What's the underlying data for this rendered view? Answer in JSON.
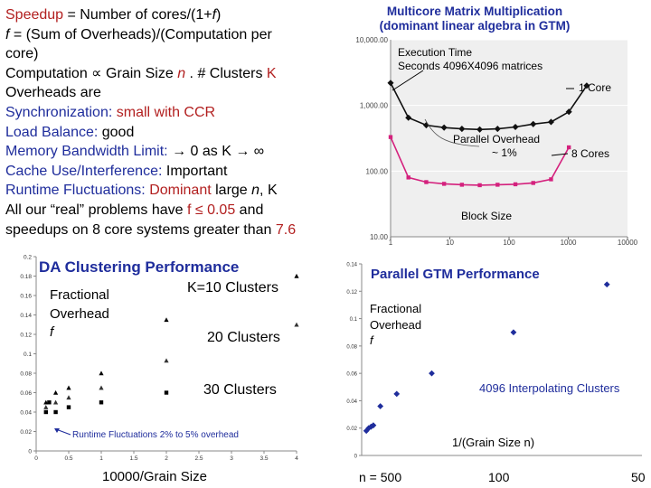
{
  "slide_text": {
    "line1": {
      "a": "Speedup",
      "b": " = Number of cores/(1+",
      "c": "f",
      "d": ")"
    },
    "line2": {
      "a": "f",
      "b": " = (Sum of Overheads)/(Computation per"
    },
    "line3": {
      "a": "core)"
    },
    "line4": {
      "a": "Computation ",
      "sym": "∝",
      "b": " Grain Size ",
      "n": "n",
      "c": " . # Clusters ",
      "k": "K"
    },
    "line5": {
      "a": "Overheads are"
    },
    "line6": {
      "a": "Synchronization: ",
      "b": "small with CCR"
    },
    "line7": {
      "a": "Load Balance: ",
      "b": "good"
    },
    "line8": {
      "a": "Memory Bandwidth Limit: ",
      "b": "→ 0 as K → ∞"
    },
    "line9": {
      "a": "Cache Use/Interference: ",
      "b": "Important"
    },
    "line10": {
      "a": "Runtime Fluctuations: ",
      "b": "Dominant",
      "c": " large ",
      "n": "n",
      "d": ", K"
    },
    "line11": {
      "a": "All our “real” problems have ",
      "b": "f ≤ 0.05",
      "c": " and"
    },
    "line12": {
      "a": "speedups on 8 core systems greater than ",
      "b": "7.6"
    }
  },
  "chart_data": [
    {
      "type": "line",
      "title": "Multicore Matrix Multiplication",
      "subtitle": "(dominant linear algebra in GTM)",
      "annotation_ylabel": [
        "Execution Time",
        "Seconds 4096X4096 matrices"
      ],
      "xlabel": "Block Size",
      "xscale": "log",
      "yscale": "log",
      "xlim": [
        1,
        10000
      ],
      "ylim": [
        10,
        10000
      ],
      "x_ticks": [
        "1",
        "10",
        "100",
        "1000",
        "10000"
      ],
      "y_ticks": [
        "10.00",
        "100.00",
        "1,000.00",
        "10,000.00"
      ],
      "series": [
        {
          "name": "1 Core",
          "color": "#111111",
          "x": [
            1,
            2,
            4,
            8,
            16,
            32,
            64,
            128,
            256,
            512,
            1024,
            2048
          ],
          "y": [
            2200,
            650,
            500,
            460,
            440,
            430,
            440,
            470,
            520,
            560,
            800,
            2000
          ]
        },
        {
          "name": "8 Cores",
          "color": "#d4217d",
          "x": [
            1,
            2,
            4,
            8,
            16,
            32,
            64,
            128,
            256,
            512,
            1024
          ],
          "y": [
            330,
            80,
            68,
            64,
            62,
            61,
            62,
            63,
            66,
            75,
            230
          ]
        }
      ],
      "annotations": [
        "Parallel Overhead",
        "~ 1%"
      ]
    },
    {
      "type": "scatter",
      "title": "DA Clustering Performance",
      "annotation_ylabel": [
        "Fractional",
        "Overhead",
        "f"
      ],
      "xlabel": "10000/Grain Size",
      "xlim": [
        0,
        4
      ],
      "ylim": [
        0,
        0.2
      ],
      "x_ticks": [
        "0",
        "0.5",
        "1",
        "1.5",
        "2",
        "2.5",
        "3",
        "3.5",
        "4"
      ],
      "y_ticks": [
        "0",
        "0.02",
        "0.04",
        "0.06",
        "0.08",
        "0.1",
        "0.12",
        "0.14",
        "0.16",
        "0.18",
        "0.2"
      ],
      "series": [
        {
          "name": "K=10 Clusters",
          "marker": "triangle",
          "x": [
            0.15,
            0.3,
            0.5,
            1.0,
            2.0,
            4.0
          ],
          "y": [
            0.05,
            0.06,
            0.065,
            0.08,
            0.135,
            0.18
          ]
        },
        {
          "name": "20 Clusters",
          "marker": "triangle",
          "x": [
            0.15,
            0.3,
            0.5,
            1.0,
            2.0,
            4.0
          ],
          "y": [
            0.045,
            0.05,
            0.055,
            0.065,
            0.093,
            0.13
          ]
        },
        {
          "name": "30 Clusters",
          "marker": "square",
          "x": [
            0.15,
            0.2,
            0.3,
            0.5,
            1.0,
            2.0
          ],
          "y": [
            0.04,
            0.05,
            0.04,
            0.045,
            0.05,
            0.06
          ]
        }
      ],
      "annotations": [
        "Runtime Fluctuations 2% to 5% overhead"
      ]
    },
    {
      "type": "scatter",
      "title": "Parallel GTM Performance",
      "annotation_ylabel": [
        "Fractional",
        "Overhead",
        "f"
      ],
      "xlabel": "1/(Grain Size n)",
      "xlim": [
        0,
        0.024
      ],
      "ylim": [
        0,
        0.14
      ],
      "y_ticks": [
        "0",
        "0.02",
        "0.04",
        "0.06",
        "0.08",
        "0.1",
        "0.12",
        "0.14"
      ],
      "x_top_labels": [
        "n = 500",
        "100",
        "50"
      ],
      "series": [
        {
          "name": "4096 Interpolating Clusters",
          "color": "#1f2d9c",
          "x": [
            0.0004,
            0.0006,
            0.0008,
            0.001,
            0.0016,
            0.003,
            0.006,
            0.013,
            0.021
          ],
          "y": [
            0.018,
            0.02,
            0.021,
            0.022,
            0.036,
            0.045,
            0.06,
            0.09,
            0.125
          ]
        }
      ]
    }
  ]
}
